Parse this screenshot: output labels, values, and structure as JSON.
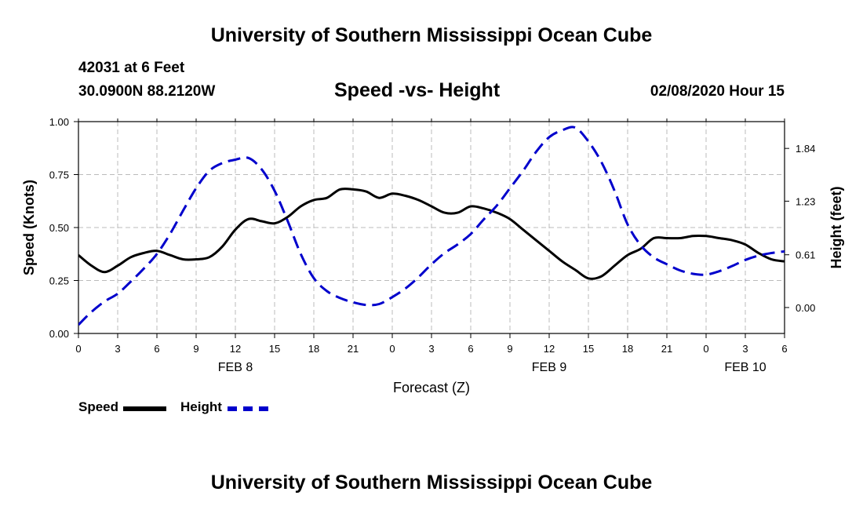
{
  "header": {
    "title": "University of Southern Mississippi Ocean Cube",
    "station": "42031 at 6 Feet",
    "coords": "30.0900N 88.2120W",
    "subtitle": "Speed -vs- Height",
    "datetime": "02/08/2020 Hour 15"
  },
  "footer": {
    "title": "University of Southern Mississippi Ocean Cube"
  },
  "legend": {
    "speed_label": "Speed",
    "height_label": "Height"
  },
  "colors": {
    "speed": "#000000",
    "height": "#0000cc",
    "grid": "#bbbbbb"
  },
  "chart_data": {
    "type": "line",
    "title": "Speed -vs- Height",
    "xlabel": "Forecast (Z)",
    "ylabel": "Speed (Knots)",
    "y2label": "Height (feet)",
    "xlim": [
      0,
      54
    ],
    "ylim": [
      0,
      1.0
    ],
    "y2lim": [
      -0.3,
      2.15
    ],
    "grid": true,
    "legend_position": "bottom-left",
    "x_ticks": [
      0,
      3,
      6,
      9,
      12,
      15,
      18,
      21,
      24,
      27,
      30,
      33,
      36,
      39,
      42,
      45,
      48,
      51,
      54
    ],
    "x_tick_labels": [
      "0",
      "3",
      "6",
      "9",
      "12",
      "15",
      "18",
      "21",
      "0",
      "3",
      "6",
      "9",
      "12",
      "15",
      "18",
      "21",
      "0",
      "3",
      "6"
    ],
    "date_labels": [
      {
        "x": 12,
        "label": "FEB 8"
      },
      {
        "x": 36,
        "label": "FEB 9"
      },
      {
        "x": 51,
        "label": "FEB 10"
      }
    ],
    "y_ticks": [
      0.0,
      0.25,
      0.5,
      0.75,
      1.0
    ],
    "y_tick_labels": [
      "0.00",
      "0.25",
      "0.50",
      "0.75",
      "1.00"
    ],
    "y2_ticks": [
      0.0,
      0.61,
      1.23,
      1.84
    ],
    "y2_tick_labels": [
      "0.00",
      "0.61",
      "1.23",
      "1.84"
    ],
    "series": [
      {
        "name": "Speed",
        "axis": "left",
        "style": "solid",
        "x": [
          0,
          1,
          2,
          3,
          4,
          5,
          6,
          7,
          8,
          9,
          10,
          11,
          12,
          13,
          14,
          15,
          16,
          17,
          18,
          19,
          20,
          21,
          22,
          23,
          24,
          25,
          26,
          27,
          28,
          29,
          30,
          31,
          32,
          33,
          34,
          35,
          36,
          37,
          38,
          39,
          40,
          41,
          42,
          43,
          44,
          45,
          46,
          47,
          48,
          49,
          50,
          51,
          52,
          53,
          54
        ],
        "values": [
          0.37,
          0.32,
          0.29,
          0.32,
          0.36,
          0.38,
          0.39,
          0.37,
          0.35,
          0.35,
          0.36,
          0.41,
          0.49,
          0.54,
          0.53,
          0.52,
          0.55,
          0.6,
          0.63,
          0.64,
          0.68,
          0.68,
          0.67,
          0.64,
          0.66,
          0.65,
          0.63,
          0.6,
          0.57,
          0.57,
          0.6,
          0.59,
          0.57,
          0.54,
          0.49,
          0.44,
          0.39,
          0.34,
          0.3,
          0.26,
          0.27,
          0.32,
          0.37,
          0.4,
          0.45,
          0.45,
          0.45,
          0.46,
          0.46,
          0.45,
          0.44,
          0.42,
          0.38,
          0.35,
          0.34
        ]
      },
      {
        "name": "Height",
        "axis": "right",
        "style": "dashed",
        "x": [
          0,
          1,
          2,
          3,
          4,
          5,
          6,
          7,
          8,
          9,
          10,
          11,
          12,
          13,
          14,
          15,
          16,
          17,
          18,
          19,
          20,
          21,
          22,
          23,
          24,
          25,
          26,
          27,
          28,
          29,
          30,
          31,
          32,
          33,
          34,
          35,
          36,
          37,
          38,
          39,
          40,
          41,
          42,
          43,
          44,
          45,
          46,
          47,
          48,
          49,
          50,
          51,
          52,
          53,
          54
        ],
        "values": [
          -0.2,
          -0.05,
          0.07,
          0.16,
          0.3,
          0.45,
          0.62,
          0.85,
          1.12,
          1.38,
          1.58,
          1.67,
          1.71,
          1.73,
          1.6,
          1.35,
          1.0,
          0.62,
          0.34,
          0.19,
          0.11,
          0.06,
          0.03,
          0.04,
          0.12,
          0.22,
          0.35,
          0.5,
          0.63,
          0.73,
          0.85,
          1.02,
          1.18,
          1.38,
          1.58,
          1.8,
          1.97,
          2.05,
          2.08,
          1.92,
          1.68,
          1.35,
          0.96,
          0.72,
          0.58,
          0.5,
          0.43,
          0.39,
          0.38,
          0.42,
          0.48,
          0.55,
          0.6,
          0.63,
          0.65
        ]
      }
    ]
  }
}
